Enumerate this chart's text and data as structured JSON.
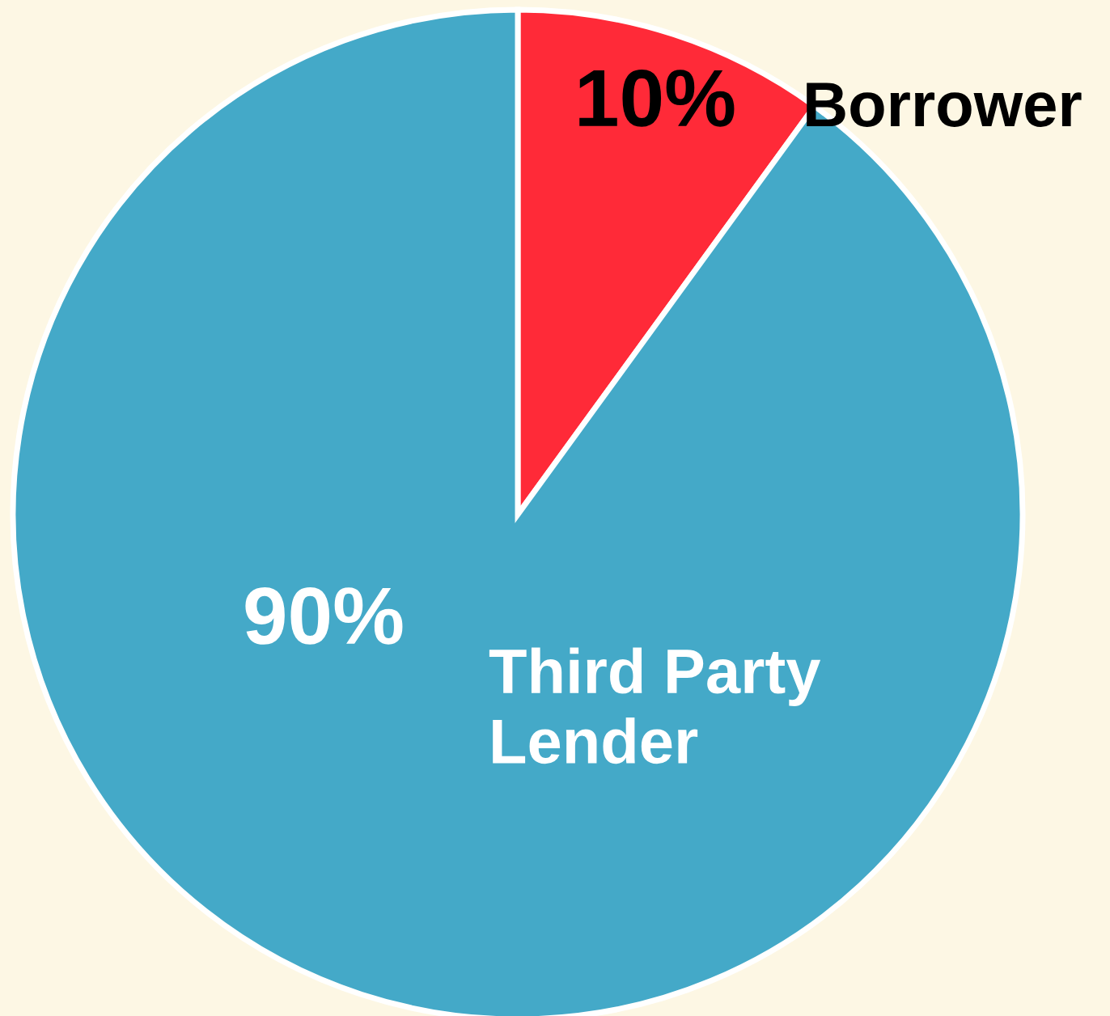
{
  "chart_data": {
    "type": "pie",
    "categories": [
      "Borrower",
      "Third Party Lender"
    ],
    "values": [
      10,
      90
    ],
    "colors": [
      "#ff2a38",
      "#44a9c8"
    ],
    "value_labels": [
      "10%",
      "90%"
    ],
    "legend": false
  }
}
